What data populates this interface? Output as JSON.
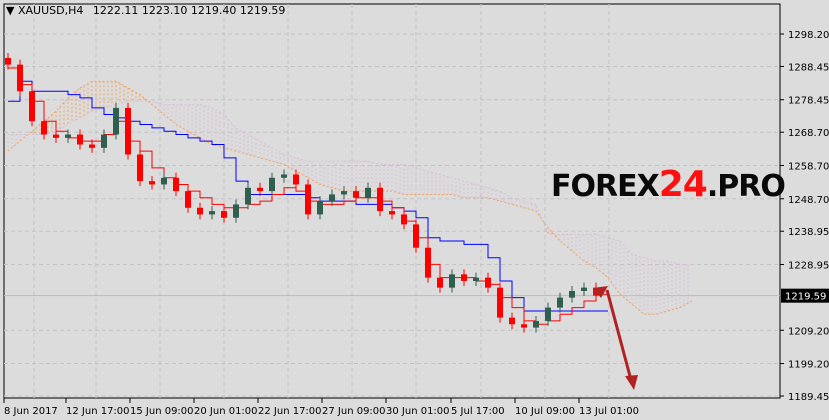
{
  "header": {
    "symbol": "XAUUSD,H4",
    "open": "1222.11",
    "high": "1223.10",
    "low": "1219.40",
    "close": "1219.59",
    "dropdown_icon": "triangle-down-icon"
  },
  "watermark": {
    "part1": "FOREX",
    "part2": "24",
    "part3": ".PRO"
  },
  "colors": {
    "background": "#dcdcdc",
    "bull": "#2f5f4f",
    "bear": "#ff0000",
    "tenkan": "#ff0000",
    "kijun": "#0000ff",
    "span_a": "#f4a460",
    "span_b": "#d8bfd8",
    "arrow": "#b22222",
    "price_box": "#000000"
  },
  "chart_data": {
    "type": "candlestick",
    "instrument": "XAUUSD",
    "timeframe": "H4",
    "ylim": [
      1189.45,
      1298.2
    ],
    "y_ticks": [
      "1298.20",
      "1288.45",
      "1278.45",
      "1268.70",
      "1258.70",
      "1248.70",
      "1238.95",
      "1228.95",
      "1219.59",
      "1209.20",
      "1199.20",
      "1189.45"
    ],
    "x_ticks": [
      "8 Jun 2017",
      "12 Jun 17:00",
      "15 Jun 09:00",
      "20 Jun 01:00",
      "22 Jun 17:00",
      "27 Jun 09:00",
      "30 Jun 01:00",
      "5 Jul 17:00",
      "10 Jul 09:00",
      "13 Jul 01:00"
    ],
    "grid": true,
    "current_price": "1219.59",
    "close": [
      1289,
      1281,
      1272,
      1268,
      1267,
      1268,
      1265,
      1264,
      1268,
      1276,
      1262,
      1254,
      1253,
      1255,
      1251,
      1246,
      1244,
      1245,
      1243,
      1247,
      1252,
      1251,
      1255,
      1256,
      1253,
      1244,
      1248,
      1250,
      1251,
      1249,
      1252,
      1245,
      1244,
      1241,
      1234,
      1225,
      1222,
      1226,
      1224,
      1225,
      1222,
      1213,
      1211,
      1210,
      1212,
      1216,
      1219,
      1221,
      1222,
      1219.59
    ],
    "series": [
      {
        "key": "tenkan",
        "values": [
          1288,
          1283,
          1278,
          1272,
          1269,
          1267,
          1266,
          1266,
          1268,
          1272,
          1266,
          1263,
          1258,
          1255,
          1253,
          1251,
          1249,
          1247,
          1246,
          1246,
          1247,
          1248,
          1250,
          1252,
          1251,
          1248,
          1247,
          1247,
          1248,
          1249,
          1249,
          1248,
          1246,
          1242,
          1237,
          1229,
          1225,
          1225,
          1225,
          1224,
          1223,
          1219,
          1216,
          1212,
          1211,
          1212,
          1214,
          1216,
          1218,
          1220
        ]
      },
      {
        "key": "kijun",
        "values": [
          1278,
          1284,
          1281,
          1281,
          1281,
          1280,
          1279,
          1276,
          1274,
          1273,
          1272,
          1271,
          1270,
          1269,
          1268,
          1267,
          1266,
          1265,
          1261,
          1254,
          1250,
          1250,
          1250,
          1250,
          1250,
          1249,
          1248,
          1248,
          1248,
          1247,
          1247,
          1247,
          1246,
          1245,
          1243,
          1237,
          1236,
          1236,
          1235,
          1235,
          1231,
          1224,
          1219,
          1215,
          1215,
          1215,
          1215,
          1215,
          1215,
          1215
        ]
      },
      {
        "key": "span_a",
        "values": [
          1263,
          1266,
          1269,
          1272,
          1275,
          1279,
          1282,
          1284,
          1284,
          1284,
          1282,
          1280,
          1277,
          1274,
          1271,
          1269,
          1267,
          1265,
          1264,
          1263,
          1262,
          1261,
          1260,
          1259,
          1257,
          1255,
          1253,
          1252,
          1251,
          1251,
          1251,
          1251,
          1251,
          1250,
          1250,
          1250,
          1250,
          1250,
          1249,
          1249,
          1249,
          1248,
          1247,
          1246,
          1245,
          1240,
          1236,
          1233,
          1230,
          1228,
          1225,
          1220,
          1217,
          1214,
          1214,
          1215,
          1216,
          1218
        ]
      },
      {
        "key": "span_b",
        "values": [
          1268,
          1268,
          1268,
          1268,
          1269,
          1271,
          1273,
          1275,
          1276,
          1277,
          1278,
          1278,
          1278,
          1277,
          1277,
          1277,
          1277,
          1276,
          1274,
          1270,
          1268,
          1266,
          1264,
          1262,
          1261,
          1260,
          1260,
          1260,
          1260,
          1260,
          1260,
          1259,
          1259,
          1259,
          1258,
          1257,
          1256,
          1255,
          1254,
          1253,
          1252,
          1251,
          1249,
          1248,
          1247,
          1238,
          1238,
          1238,
          1238,
          1238,
          1237,
          1236,
          1232,
          1231,
          1230,
          1230,
          1229,
          1229
        ]
      }
    ]
  }
}
